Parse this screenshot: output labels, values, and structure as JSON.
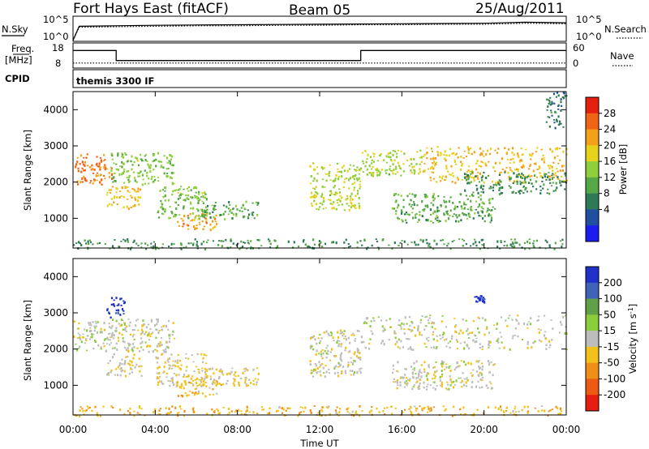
{
  "header": {
    "station": "Fort Hays East (fitACF)",
    "beam": "Beam 05",
    "date": "25/Aug/2011"
  },
  "control_panels": {
    "nsky_label": "N.Sky",
    "nsearch_label": "N.Search",
    "noise_ticks_left": [
      "10^5",
      "10^0"
    ],
    "noise_ticks_right": [
      "10^5",
      "10^0"
    ],
    "freq_label_1": "Freq.",
    "freq_label_2": "[MHz]",
    "freq_ticks": [
      "18",
      "8"
    ],
    "nave_label": "Nave",
    "nave_ticks": [
      "60",
      "0"
    ],
    "cpid_label": "CPID",
    "cpid_text": "themis 3300 IF"
  },
  "axes": {
    "x_ticks": [
      "00:00",
      "04:00",
      "08:00",
      "12:00",
      "16:00",
      "20:00",
      "00:00"
    ],
    "x_label": "Time UT",
    "y_label": "Slant Range [km]",
    "y_ticks": [
      "1000",
      "2000",
      "3000",
      "4000"
    ]
  },
  "power_colorbar": {
    "label": "Power [dB]",
    "ticks": [
      "4",
      "8",
      "12",
      "16",
      "20",
      "24",
      "28"
    ],
    "colors": [
      "#1b1bf2",
      "#214fa0",
      "#2e7a57",
      "#55a845",
      "#8fcf3c",
      "#e6d21b",
      "#f4a11a",
      "#f06416",
      "#e5200f"
    ]
  },
  "velocity_colorbar": {
    "label": "Velocity [m s",
    "label_sup": "-1",
    "label_end": "]",
    "ticks": [
      "200",
      "100",
      "50",
      "15",
      "-15",
      "-50",
      "-100",
      "-200"
    ],
    "colors": [
      "#2030c8",
      "#3f63b8",
      "#5fa048",
      "#8ccd3b",
      "#bdbdbd",
      "#f2c21a",
      "#f08f18",
      "#ec5a14",
      "#e51d10"
    ]
  },
  "chart_data": [
    {
      "type": "line",
      "title": "N.Sky / N.Search",
      "x_hours": [
        0,
        0.3,
        2,
        4,
        6,
        8,
        10,
        12,
        14,
        16,
        18,
        20,
        22,
        24
      ],
      "nsky_log": [
        0.2,
        3.0,
        3.1,
        3.2,
        3.25,
        3.3,
        3.35,
        3.4,
        3.45,
        3.5,
        3.55,
        3.6,
        3.8,
        3.7
      ],
      "nsearch_log": [
        0.2,
        2.8,
        2.9,
        3.0,
        3.1,
        3.1,
        3.2,
        3.2,
        3.3,
        3.3,
        3.4,
        3.4,
        3.6,
        3.5
      ],
      "ylim_log": [
        0,
        5
      ]
    },
    {
      "type": "line",
      "title": "Freq / Nave",
      "freq_step_hours": [
        0,
        2.1,
        14.0,
        24
      ],
      "freq_mhz": [
        15,
        11,
        15,
        15
      ],
      "nave": [
        12,
        12,
        12,
        12
      ],
      "freq_ylim": [
        8,
        18
      ],
      "nave_ylim": [
        0,
        60
      ]
    },
    {
      "type": "heatmap",
      "title": "Power [dB]",
      "xlim_hours": [
        0,
        24
      ],
      "ylim_km": [
        180,
        4500
      ],
      "zlim": [
        0,
        30
      ],
      "blobs": [
        {
          "t0": 0.0,
          "t1": 1.9,
          "r0": 1950,
          "r1": 2800,
          "val": 24
        },
        {
          "t0": 1.6,
          "t1": 3.3,
          "r0": 1280,
          "r1": 1900,
          "val": 20
        },
        {
          "t0": 1.8,
          "t1": 4.9,
          "r0": 1950,
          "r1": 2850,
          "val": 14
        },
        {
          "t0": 4.0,
          "t1": 6.5,
          "r0": 1000,
          "r1": 1900,
          "val": 14
        },
        {
          "t0": 5.0,
          "t1": 7.0,
          "r0": 700,
          "r1": 1150,
          "val": 22
        },
        {
          "t0": 6.0,
          "t1": 9.0,
          "r0": 1000,
          "r1": 1500,
          "val": 12
        },
        {
          "t0": 11.5,
          "t1": 14.0,
          "r0": 1250,
          "r1": 2550,
          "val": 16
        },
        {
          "t0": 14.0,
          "t1": 17.0,
          "r0": 2200,
          "r1": 2900,
          "val": 16
        },
        {
          "t0": 17.0,
          "t1": 24.0,
          "r0": 2000,
          "r1": 3000,
          "val": 20
        },
        {
          "t0": 15.5,
          "t1": 20.5,
          "r0": 900,
          "r1": 1700,
          "val": 12
        },
        {
          "t0": 19.0,
          "t1": 24.0,
          "r0": 1700,
          "r1": 2300,
          "val": 10
        },
        {
          "t0": 0.0,
          "t1": 24.0,
          "r0": 180,
          "r1": 450,
          "val": 10
        },
        {
          "t0": 23.0,
          "t1": 24.0,
          "r0": 3500,
          "r1": 4500,
          "val": 8
        }
      ]
    },
    {
      "type": "heatmap",
      "title": "Velocity",
      "xlim_hours": [
        0,
        24
      ],
      "ylim_km": [
        180,
        4500
      ],
      "zlim": [
        -250,
        250
      ],
      "blobs": [
        {
          "t0": 0.0,
          "t1": 1.9,
          "r0": 1950,
          "r1": 2800,
          "val": 0
        },
        {
          "t0": 1.5,
          "t1": 2.5,
          "r0": 2900,
          "r1": 3450,
          "val": 220
        },
        {
          "t0": 1.6,
          "t1": 3.3,
          "r0": 1280,
          "r1": 1900,
          "val": -20
        },
        {
          "t0": 1.8,
          "t1": 4.9,
          "r0": 1950,
          "r1": 2850,
          "val": -5
        },
        {
          "t0": 4.0,
          "t1": 6.5,
          "r0": 1000,
          "r1": 1900,
          "val": -30
        },
        {
          "t0": 5.0,
          "t1": 7.0,
          "r0": 700,
          "r1": 1150,
          "val": -60
        },
        {
          "t0": 6.0,
          "t1": 9.0,
          "r0": 1000,
          "r1": 1500,
          "val": -40
        },
        {
          "t0": 11.5,
          "t1": 14.0,
          "r0": 1250,
          "r1": 2550,
          "val": -5
        },
        {
          "t0": 14.0,
          "t1": 24.0,
          "r0": 2000,
          "r1": 2950,
          "val": 0
        },
        {
          "t0": 15.5,
          "t1": 20.5,
          "r0": 900,
          "r1": 1700,
          "val": -5
        },
        {
          "t0": 0.0,
          "t1": 24.0,
          "r0": 180,
          "r1": 450,
          "val": -70
        },
        {
          "t0": 19.5,
          "t1": 20.0,
          "r0": 3300,
          "r1": 3500,
          "val": 220
        }
      ]
    }
  ]
}
